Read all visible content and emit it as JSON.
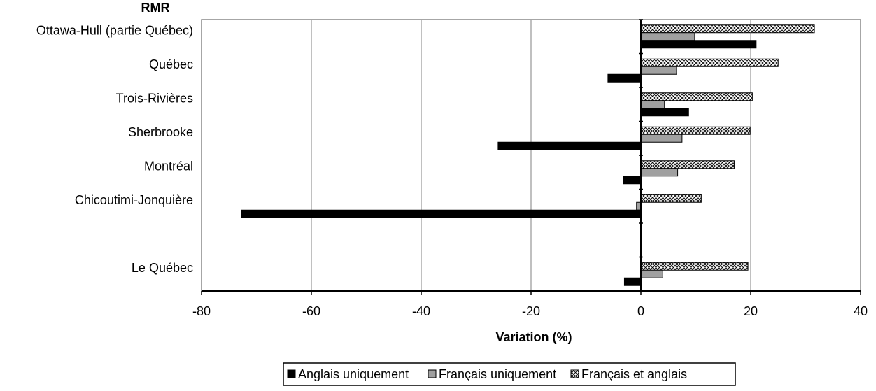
{
  "chart_data": {
    "type": "bar",
    "orientation": "horizontal",
    "title": "",
    "ylabel": "RMR",
    "xlabel": "Variation (%)",
    "xlim": [
      -80,
      40
    ],
    "xticks": [
      -80,
      -60,
      -40,
      -20,
      0,
      20,
      40
    ],
    "xtick_labels": [
      "-80",
      "-60",
      "-40",
      "-20",
      "0",
      "20",
      "40"
    ],
    "grid": "vertical",
    "legend_position": "bottom",
    "categories": [
      "Ottawa-Hull (partie Québec)",
      "Québec",
      "Trois-Rivières",
      "Sherbrooke",
      "Montréal",
      "Chicoutimi-Jonquière",
      "",
      "Le Québec"
    ],
    "series": [
      {
        "name": "Anglais uniquement",
        "pattern": "solid",
        "color": "#000000",
        "values": [
          21.0,
          -6.0,
          8.7,
          -26.0,
          -3.2,
          -72.8,
          null,
          -3.0
        ]
      },
      {
        "name": "Français uniquement",
        "pattern": "solid",
        "color": "#a0a0a0",
        "values": [
          9.8,
          6.5,
          4.3,
          7.5,
          6.7,
          -0.8,
          null,
          4.0
        ]
      },
      {
        "name": "Français et anglais",
        "pattern": "crosshatch",
        "color": "#ffffff",
        "values": [
          31.6,
          25.0,
          20.3,
          19.9,
          17.0,
          11.0,
          null,
          19.5
        ]
      }
    ]
  }
}
